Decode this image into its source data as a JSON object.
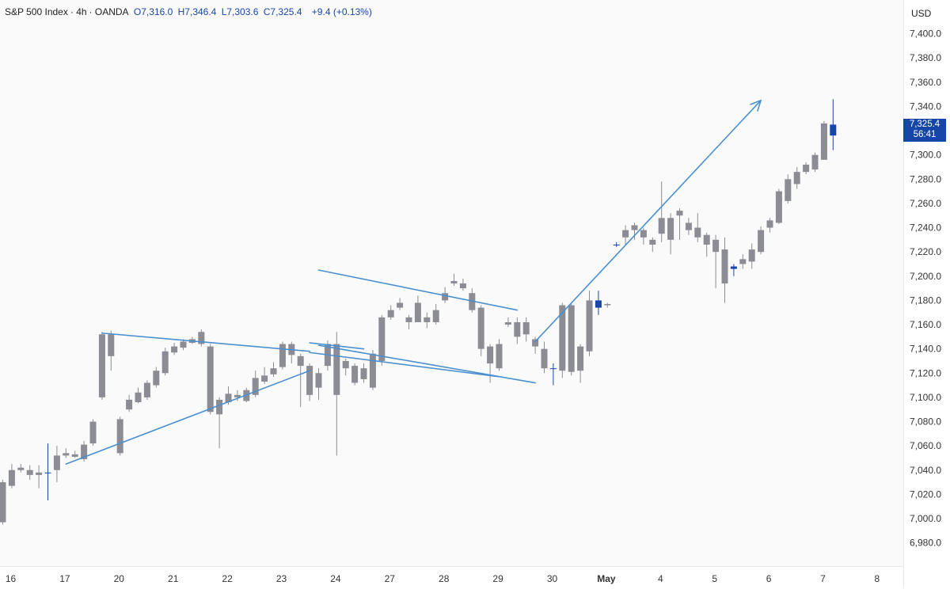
{
  "header": {
    "symbol": "S&P 500 Index",
    "interval": "4h",
    "source": "OANDA",
    "open": "O7,316.0",
    "high": "H7,346.4",
    "low": "L7,303.6",
    "close": "C7,325.4",
    "change": "+9.4 (+0.13%)"
  },
  "currency": "USD",
  "last_price": {
    "value": "7,325.4",
    "countdown": "56:41"
  },
  "colors": {
    "up": "#1747a6",
    "down": "#8c8c94",
    "drawing": "#4a90d0",
    "badge": "#1747a6"
  },
  "chart_data": {
    "type": "candlestick",
    "y_ticks": [
      "6,980.0",
      "7,000.0",
      "7,020.0",
      "7,040.0",
      "7,060.0",
      "7,080.0",
      "7,100.0",
      "7,120.0",
      "7,140.0",
      "7,160.0",
      "7,180.0",
      "7,200.0",
      "7,220.0",
      "7,240.0",
      "7,260.0",
      "7,280.0",
      "7,300.0",
      "7,320.0",
      "7,340.0",
      "7,360.0",
      "7,380.0",
      "7,400.0"
    ],
    "ylim": [
      6960,
      7420
    ],
    "x_ticks": [
      {
        "label": "16",
        "i": 0
      },
      {
        "label": "17",
        "i": 6
      },
      {
        "label": "20",
        "i": 12
      },
      {
        "label": "21",
        "i": 18
      },
      {
        "label": "22",
        "i": 24
      },
      {
        "label": "23",
        "i": 30
      },
      {
        "label": "24",
        "i": 36
      },
      {
        "label": "27",
        "i": 42
      },
      {
        "label": "28",
        "i": 48
      },
      {
        "label": "29",
        "i": 54
      },
      {
        "label": "30",
        "i": 60
      },
      {
        "label": "May",
        "i": 66
      },
      {
        "label": "4",
        "i": 72
      },
      {
        "label": "5",
        "i": 78
      },
      {
        "label": "6",
        "i": 84
      },
      {
        "label": "7",
        "i": 90
      },
      {
        "label": "8",
        "i": 96
      }
    ],
    "candles": [
      [
        7030,
        7032,
        6995,
        6997
      ],
      [
        7040,
        7045,
        7025,
        7027
      ],
      [
        7042,
        7045,
        7038,
        7040
      ],
      [
        7040,
        7044,
        7032,
        7036
      ],
      [
        7038,
        7044,
        7025,
        7036
      ],
      [
        7038,
        7062,
        7015,
        7038
      ],
      [
        7052,
        7060,
        7030,
        7040
      ],
      [
        7054,
        7058,
        7050,
        7052
      ],
      [
        7053,
        7056,
        7050,
        7051
      ],
      [
        7061,
        7064,
        7047,
        7049
      ],
      [
        7080,
        7082,
        7060,
        7062
      ],
      [
        7152,
        7154,
        7098,
        7100
      ],
      [
        7152,
        7155,
        7122,
        7134
      ],
      [
        7082,
        7084,
        7052,
        7054
      ],
      [
        7098,
        7102,
        7088,
        7090
      ],
      [
        7104,
        7108,
        7095,
        7096
      ],
      [
        7112,
        7114,
        7098,
        7100
      ],
      [
        7122,
        7125,
        7108,
        7110
      ],
      [
        7138,
        7141,
        7118,
        7120
      ],
      [
        7142,
        7145,
        7135,
        7137
      ],
      [
        7146,
        7148,
        7139,
        7141
      ],
      [
        7148,
        7150,
        7144,
        7145
      ],
      [
        7154,
        7156,
        7142,
        7144
      ],
      [
        7142,
        7144,
        7086,
        7088
      ],
      [
        7098,
        7100,
        7058,
        7086
      ],
      [
        7103,
        7109,
        7094,
        7096
      ],
      [
        7102,
        7106,
        7097,
        7100
      ],
      [
        7106,
        7108,
        7096,
        7097
      ],
      [
        7116,
        7122,
        7100,
        7102
      ],
      [
        7118,
        7125,
        7111,
        7113
      ],
      [
        7124,
        7129,
        7117,
        7119
      ],
      [
        7144,
        7146,
        7123,
        7125
      ],
      [
        7144,
        7146,
        7128,
        7135
      ],
      [
        7134,
        7136,
        7092,
        7126
      ],
      [
        7126,
        7128,
        7097,
        7102
      ],
      [
        7120,
        7124,
        7098,
        7108
      ],
      [
        7144,
        7147,
        7122,
        7126
      ],
      [
        7144,
        7154,
        7052,
        7102
      ],
      [
        7130,
        7132,
        7118,
        7124
      ],
      [
        7126,
        7128,
        7110,
        7112
      ],
      [
        7124,
        7128,
        7112,
        7115
      ],
      [
        7136,
        7139,
        7106,
        7108
      ],
      [
        7166,
        7168,
        7126,
        7130
      ],
      [
        7172,
        7176,
        7164,
        7166
      ],
      [
        7178,
        7182,
        7172,
        7174
      ],
      [
        7166,
        7168,
        7156,
        7162
      ],
      [
        7178,
        7184,
        7162,
        7162
      ],
      [
        7166,
        7170,
        7157,
        7162
      ],
      [
        7172,
        7177,
        7160,
        7162
      ],
      [
        7186,
        7191,
        7178,
        7180
      ],
      [
        7196,
        7202,
        7192,
        7194
      ],
      [
        7194,
        7198,
        7188,
        7190
      ],
      [
        7186,
        7190,
        7170,
        7172
      ],
      [
        7174,
        7176,
        7134,
        7140
      ],
      [
        7142,
        7144,
        7112,
        7128
      ],
      [
        7144,
        7148,
        7122,
        7124
      ],
      [
        7162,
        7166,
        7158,
        7160
      ],
      [
        7162,
        7166,
        7144,
        7150
      ],
      [
        7162,
        7166,
        7146,
        7152
      ],
      [
        7148,
        7150,
        7136,
        7142
      ],
      [
        7140,
        7146,
        7120,
        7124
      ],
      [
        7124,
        7128,
        7110,
        7124
      ],
      [
        7176,
        7178,
        7116,
        7122
      ],
      [
        7176,
        7178,
        7118,
        7121
      ],
      [
        7142,
        7144,
        7112,
        7122
      ],
      [
        7180,
        7188,
        7134,
        7138
      ],
      [
        7174,
        7188,
        7168,
        7180
      ],
      [
        7177,
        7178,
        7174,
        7176
      ],
      [
        7226,
        7228,
        7224,
        7226
      ],
      [
        7238,
        7242,
        7226,
        7232
      ],
      [
        7242,
        7244,
        7230,
        7238
      ],
      [
        7238,
        7240,
        7226,
        7232
      ],
      [
        7230,
        7232,
        7220,
        7226
      ],
      [
        7248,
        7278,
        7228,
        7235
      ],
      [
        7248,
        7252,
        7218,
        7230
      ],
      [
        7254,
        7256,
        7230,
        7250
      ],
      [
        7244,
        7248,
        7234,
        7238
      ],
      [
        7240,
        7252,
        7228,
        7232
      ],
      [
        7234,
        7236,
        7216,
        7226
      ],
      [
        7230,
        7234,
        7190,
        7220
      ],
      [
        7222,
        7232,
        7178,
        7194
      ],
      [
        7206,
        7210,
        7200,
        7208
      ],
      [
        7214,
        7218,
        7206,
        7210
      ],
      [
        7222,
        7227,
        7206,
        7212
      ],
      [
        7238,
        7241,
        7218,
        7220
      ],
      [
        7246,
        7248,
        7236,
        7240
      ],
      [
        7270,
        7272,
        7243,
        7244
      ],
      [
        7280,
        7284,
        7260,
        7262
      ],
      [
        7286,
        7290,
        7272,
        7276
      ],
      [
        7292,
        7294,
        7284,
        7286
      ],
      [
        7300,
        7302,
        7286,
        7288
      ],
      [
        7326,
        7328,
        7296,
        7296
      ],
      [
        7316,
        7346,
        7304,
        7325
      ]
    ],
    "trendlines": [
      {
        "from": [
          11,
          7153
        ],
        "to": [
          34,
          7138
        ]
      },
      {
        "from": [
          7,
          7045
        ],
        "to": [
          34,
          7122
        ]
      },
      {
        "from": [
          34,
          7145
        ],
        "to": [
          40,
          7140
        ]
      },
      {
        "from": [
          34,
          7137
        ],
        "to": [
          55,
          7117
        ]
      },
      {
        "from": [
          35,
          7205
        ],
        "to": [
          57,
          7172
        ]
      },
      {
        "from": [
          35,
          7143
        ],
        "to": [
          59,
          7112
        ]
      },
      {
        "from": [
          59,
          7146
        ],
        "to": [
          84,
          7345
        ],
        "arrow": true
      }
    ]
  }
}
